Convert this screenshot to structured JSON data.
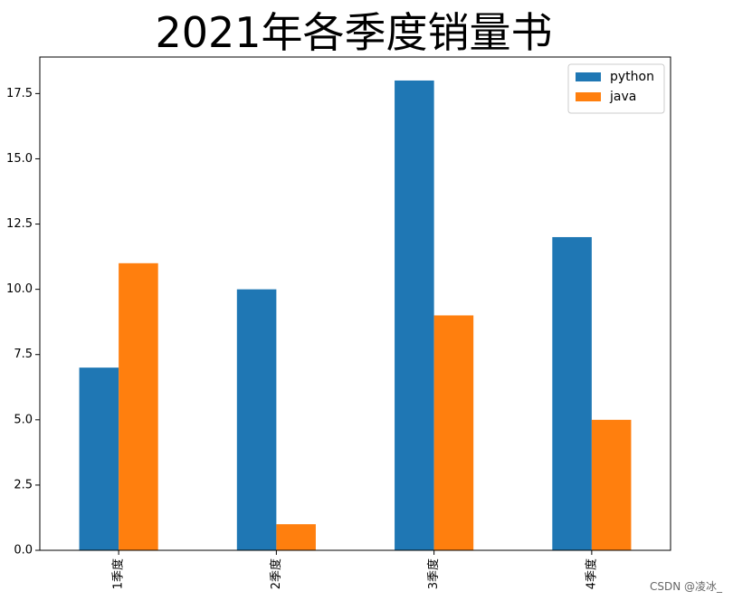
{
  "chart_data": {
    "type": "bar",
    "title": "2021年各季度销量书",
    "categories": [
      "1季度",
      "2季度",
      "3季度",
      "4季度"
    ],
    "series": [
      {
        "name": "python",
        "values": [
          7,
          10,
          18,
          12
        ],
        "color": "#1f77b4"
      },
      {
        "name": "java",
        "values": [
          11,
          1,
          9,
          5
        ],
        "color": "#ff7f0e"
      }
    ],
    "ylim": [
      0,
      18.9
    ],
    "yticks": [
      "0.0",
      "2.5",
      "5.0",
      "7.5",
      "10.0",
      "12.5",
      "15.0",
      "17.5"
    ],
    "legend_position": "top-right",
    "grid": false,
    "xlabel": "",
    "ylabel": ""
  },
  "watermark": "CSDN @凌冰_"
}
